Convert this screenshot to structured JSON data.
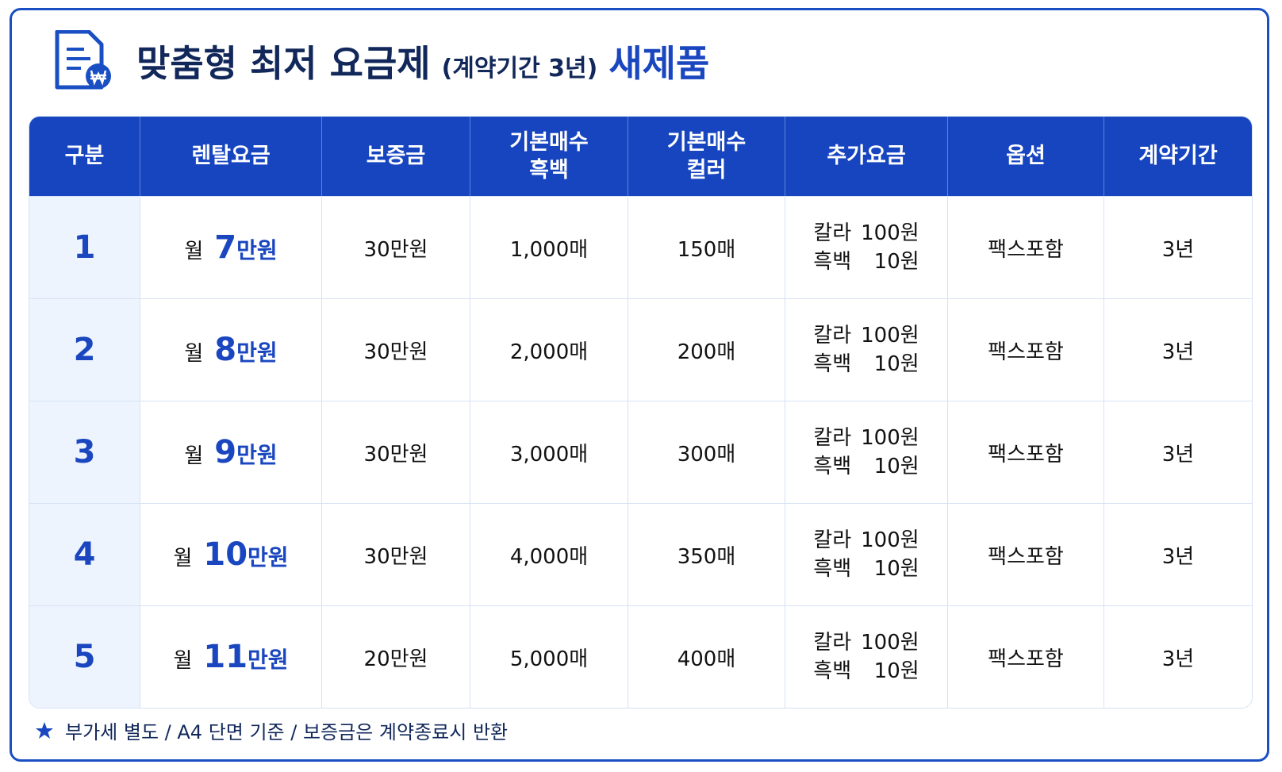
{
  "header": {
    "title": "맞춤형 최저 요금제",
    "subtitle": "(계약기간 3년)",
    "badge": "새제품"
  },
  "table": {
    "columns": [
      [
        "구분"
      ],
      [
        "렌탈요금"
      ],
      [
        "보증금"
      ],
      [
        "기본매수",
        "흑백"
      ],
      [
        "기본매수",
        "컬러"
      ],
      [
        "추가요금"
      ],
      [
        "옵션"
      ],
      [
        "계약기간"
      ]
    ],
    "rows": [
      {
        "no": "1",
        "rent": [
          "월",
          "7",
          "만원"
        ],
        "deposit": "30만원",
        "bw": "1,000매",
        "color": "150매",
        "extra": [
          [
            "칼라",
            "100원"
          ],
          [
            "흑백",
            "10원"
          ]
        ],
        "option": "팩스포함",
        "term": "3년"
      },
      {
        "no": "2",
        "rent": [
          "월",
          "8",
          "만원"
        ],
        "deposit": "30만원",
        "bw": "2,000매",
        "color": "200매",
        "extra": [
          [
            "칼라",
            "100원"
          ],
          [
            "흑백",
            "10원"
          ]
        ],
        "option": "팩스포함",
        "term": "3년"
      },
      {
        "no": "3",
        "rent": [
          "월",
          "9",
          "만원"
        ],
        "deposit": "30만원",
        "bw": "3,000매",
        "color": "300매",
        "extra": [
          [
            "칼라",
            "100원"
          ],
          [
            "흑백",
            "10원"
          ]
        ],
        "option": "팩스포함",
        "term": "3년"
      },
      {
        "no": "4",
        "rent": [
          "월",
          "10",
          "만원"
        ],
        "deposit": "30만원",
        "bw": "4,000매",
        "color": "350매",
        "extra": [
          [
            "칼라",
            "100원"
          ],
          [
            "흑백",
            "10원"
          ]
        ],
        "option": "팩스포함",
        "term": "3년"
      },
      {
        "no": "5",
        "rent": [
          "월",
          "11",
          "만원"
        ],
        "deposit": "20만원",
        "bw": "5,000매",
        "color": "400매",
        "extra": [
          [
            "칼라",
            "100원"
          ],
          [
            "흑백",
            "10원"
          ]
        ],
        "option": "팩스포함",
        "term": "3년"
      }
    ]
  },
  "footnote": "부가세 별도 / A4 단면 기준 / 보증금은 계약종료시 반환"
}
